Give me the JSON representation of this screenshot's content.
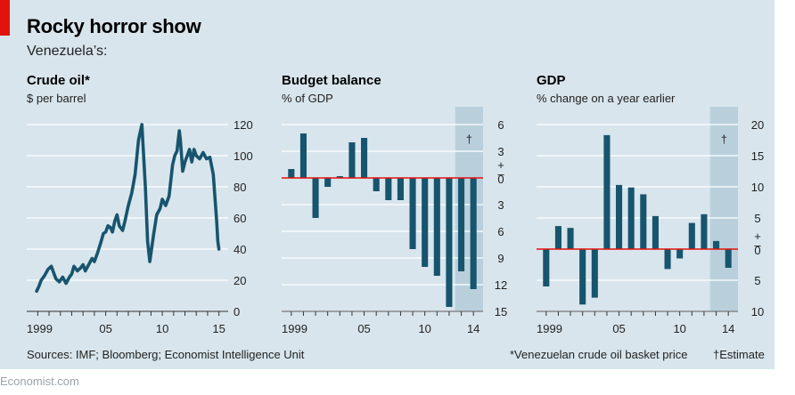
{
  "header": {
    "title": "Rocky horror show",
    "subtitle": "Venezuela’s:"
  },
  "footer": {
    "sources": "Sources: IMF; Bloomberg; Economist Intelligence Unit",
    "footnote_star": "*Venezuelan crude oil basket price",
    "footnote_dagger": "†Estimate",
    "watermark": "Economist.com"
  },
  "colors": {
    "background": "#d8e5ec",
    "series": "#17546e",
    "zero_line": "#e3120b",
    "estimate_shade": "#b9d0dc",
    "brand_red": "#e3120b"
  },
  "chart_data": [
    {
      "type": "line",
      "title": "Crude oil*",
      "ylabel": "$ per barrel",
      "ylim": [
        0,
        120
      ],
      "yticks": [
        "0",
        "20",
        "40",
        "60",
        "80",
        "100",
        "120"
      ],
      "xticks": [
        "1999",
        "05",
        "10",
        "15"
      ],
      "x": [
        1998.9,
        1999.1,
        1999.3,
        1999.6,
        1999.9,
        2000.2,
        2000.4,
        2000.6,
        2000.9,
        2001.2,
        2001.5,
        2001.8,
        2002.0,
        2002.2,
        2002.5,
        2002.8,
        2003.0,
        2003.2,
        2003.5,
        2003.8,
        2004.0,
        2004.3,
        2004.6,
        2004.8,
        2005.0,
        2005.2,
        2005.4,
        2005.6,
        2005.8,
        2006.0,
        2006.2,
        2006.5,
        2006.7,
        2007.0,
        2007.3,
        2007.6,
        2007.9,
        2008.2,
        2008.5,
        2008.7,
        2008.9,
        2009.2,
        2009.5,
        2009.8,
        2010.0,
        2010.3,
        2010.6,
        2010.9,
        2011.1,
        2011.3,
        2011.5,
        2011.6,
        2011.8,
        2012.0,
        2012.2,
        2012.4,
        2012.6,
        2012.8,
        2013.0,
        2013.3,
        2013.6,
        2013.9,
        2014.2,
        2014.5,
        2014.8,
        2014.9,
        2015.0
      ],
      "series": [
        {
          "values": [
            13,
            16,
            20,
            23,
            27,
            29,
            25,
            21,
            19,
            22,
            18,
            22,
            24,
            29,
            26,
            28,
            30,
            26,
            30,
            34,
            32,
            38,
            45,
            50,
            51,
            55,
            54,
            51,
            58,
            62,
            55,
            52,
            58,
            68,
            76,
            88,
            110,
            120,
            80,
            45,
            32,
            48,
            62,
            66,
            72,
            68,
            74,
            94,
            100,
            103,
            116,
            110,
            90,
            96,
            100,
            104,
            96,
            104,
            100,
            98,
            102,
            98,
            99,
            88,
            58,
            45,
            40
          ]
        }
      ]
    },
    {
      "type": "bar",
      "title": "Budget balance",
      "ylabel": "% of GDP",
      "ylim": [
        -15,
        6
      ],
      "yticks": [
        "6",
        "3",
        "+",
        "–",
        "0",
        "3",
        "6",
        "9",
        "12",
        "15"
      ],
      "xticks": [
        "1999",
        "05",
        "10",
        "14"
      ],
      "estimate_from": 2012.5,
      "estimate_mark": "†",
      "categories": [
        1999,
        2000,
        2001,
        2002,
        2003,
        2004,
        2005,
        2006,
        2007,
        2008,
        2009,
        2010,
        2011,
        2012,
        2013,
        2014
      ],
      "values": [
        1.0,
        5.0,
        -4.5,
        -1.0,
        0.2,
        4.0,
        4.5,
        -1.5,
        -2.5,
        -2.5,
        -8.0,
        -10.0,
        -11.0,
        -14.5,
        -10.5,
        -12.5
      ]
    },
    {
      "type": "bar",
      "title": "GDP",
      "ylabel": "% change on a year earlier",
      "ylim": [
        -10,
        20
      ],
      "yticks": [
        "20",
        "15",
        "10",
        "5",
        "+",
        "–",
        "0",
        "5",
        "10"
      ],
      "xticks": [
        "1999",
        "05",
        "10",
        "14"
      ],
      "estimate_from": 2012.5,
      "estimate_mark": "†",
      "categories": [
        1999,
        2000,
        2001,
        2002,
        2003,
        2004,
        2005,
        2006,
        2007,
        2008,
        2009,
        2010,
        2011,
        2012,
        2013,
        2014
      ],
      "values": [
        -6.0,
        3.7,
        3.4,
        -8.9,
        -7.8,
        18.3,
        10.3,
        9.9,
        8.8,
        5.3,
        -3.2,
        -1.5,
        4.2,
        5.6,
        1.3,
        -3.0
      ]
    }
  ]
}
